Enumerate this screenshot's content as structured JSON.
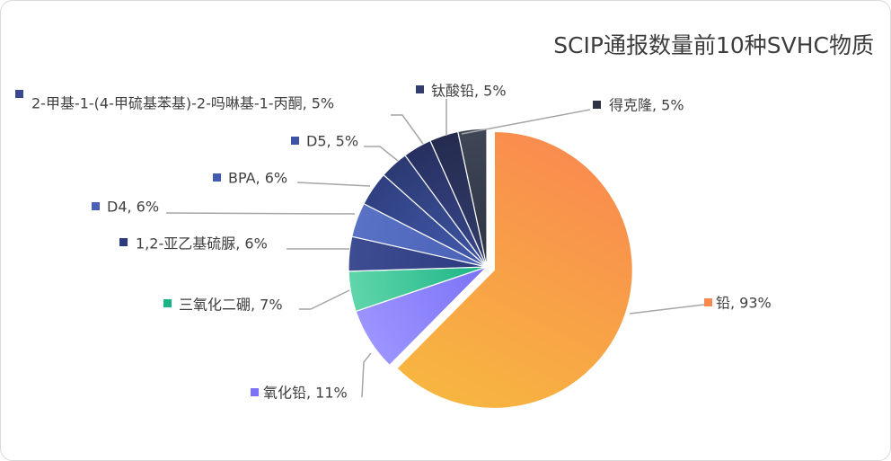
{
  "chart_data": {
    "type": "pie",
    "title": "SCIP通报数量前10种SVHC物质",
    "legend": "none",
    "slices": [
      {
        "name": "铅",
        "value": 93,
        "label": "铅, 93%",
        "color": "#f9894f",
        "color2": "#f7b740"
      },
      {
        "name": "氧化铅",
        "value": 11,
        "label": "氧化铅, 11%",
        "color": "#7b72f7",
        "color2": "#9c94ff"
      },
      {
        "name": "三氧化二硼",
        "value": 7,
        "label": "三氧化二硼, 7%",
        "color": "#1bb486",
        "color2": "#5fd6aa"
      },
      {
        "name": "1,2-亚乙基硫脲",
        "value": 6,
        "label": "1,2-亚乙基硫脲, 6%",
        "color": "#2c3a7e",
        "color2": "#3e4c92"
      },
      {
        "name": "D4",
        "value": 6,
        "label": "D4, 6%",
        "color": "#4a62b6",
        "color2": "#5a72c6"
      },
      {
        "name": "BPA",
        "value": 6,
        "label": "BPA, 6%",
        "color": "#445caf",
        "color2": "#2f3f80"
      },
      {
        "name": "D5",
        "value": 5,
        "label": "D5, 5%",
        "color": "#3e55a5",
        "color2": "#2c3a72"
      },
      {
        "name": "2-甲基-1-(4-甲硫基苯基)-2-吗啉基-1-丙酮",
        "value": 5,
        "label": "2-甲基-1-(4-甲硫基苯基)-2-吗啉基-1-丙酮, 5%",
        "color": "#39488f",
        "color2": "#27305f"
      },
      {
        "name": "钛酸铅",
        "value": 5,
        "label": "钛酸铅, 5%",
        "color": "#323c6e",
        "color2": "#252c4f"
      },
      {
        "name": "得克隆",
        "value": 5,
        "label": "得克隆, 5%",
        "color": "#2d3443",
        "color2": "#3f4656"
      }
    ]
  }
}
